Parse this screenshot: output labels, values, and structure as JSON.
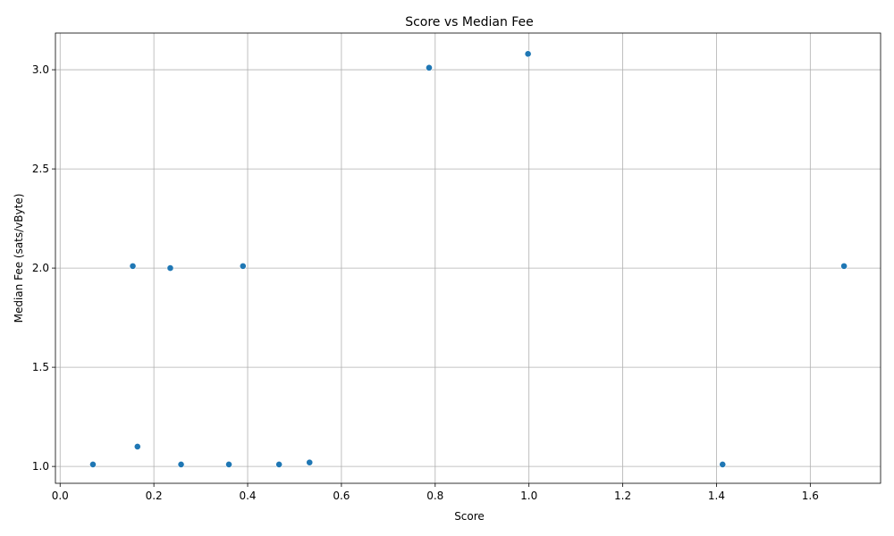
{
  "chart_data": {
    "type": "scatter",
    "title": "Score vs Median Fee",
    "xlabel": "Score",
    "ylabel": "Median Fee (sats/vByte)",
    "xlim": [
      -0.01,
      1.75
    ],
    "ylim": [
      0.915,
      3.185
    ],
    "xticks": [
      0.0,
      0.2,
      0.4,
      0.6,
      0.8,
      1.0,
      1.2,
      1.4,
      1.6
    ],
    "xtick_labels": [
      "0.0",
      "0.2",
      "0.4",
      "0.6",
      "0.8",
      "1.0",
      "1.2",
      "1.4",
      "1.6"
    ],
    "yticks": [
      1.0,
      1.5,
      2.0,
      2.5,
      3.0
    ],
    "ytick_labels": [
      "1.0",
      "1.5",
      "2.0",
      "2.5",
      "3.0"
    ],
    "grid": true,
    "point_color": "#1f77b4",
    "points": [
      {
        "x": 0.07,
        "y": 1.01
      },
      {
        "x": 0.155,
        "y": 2.01
      },
      {
        "x": 0.165,
        "y": 1.1
      },
      {
        "x": 0.235,
        "y": 2.0
      },
      {
        "x": 0.258,
        "y": 1.01
      },
      {
        "x": 0.36,
        "y": 1.01
      },
      {
        "x": 0.39,
        "y": 2.01
      },
      {
        "x": 0.467,
        "y": 1.01
      },
      {
        "x": 0.532,
        "y": 1.02
      },
      {
        "x": 0.787,
        "y": 3.01
      },
      {
        "x": 0.998,
        "y": 3.08
      },
      {
        "x": 1.413,
        "y": 1.01
      },
      {
        "x": 1.672,
        "y": 2.01
      }
    ]
  }
}
